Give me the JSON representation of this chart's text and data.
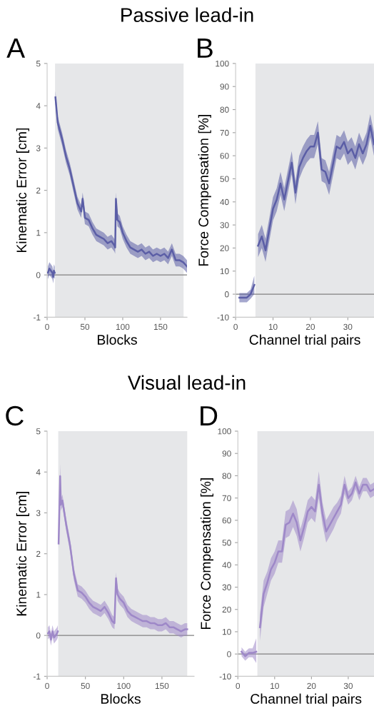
{
  "chart_data": [
    {
      "type": "line",
      "title": "A",
      "annotations": [
        "Passive lead-in"
      ],
      "xlabel": "Blocks",
      "ylabel": "Kinematic Error [cm]",
      "xlim": [
        0,
        185
      ],
      "xticks": [
        0,
        50,
        100,
        150
      ],
      "ylim": [
        -1,
        5
      ],
      "yticks": [
        -1,
        0,
        1,
        2,
        3,
        4,
        5
      ],
      "grid": false,
      "bands": [
        {
          "axis": "x",
          "from": 10.5,
          "to": 180.5,
          "color": "#e6e7e9"
        }
      ],
      "ref_lines": [
        {
          "axis": "y",
          "value": 0,
          "color": "#808080"
        }
      ],
      "series": [
        {
          "color": "#5b5ea6",
          "x": [
            1,
            3,
            5,
            7,
            8,
            9,
            10,
            10.7,
            11,
            12,
            14,
            17,
            20,
            25,
            30,
            35,
            40,
            45,
            47,
            50,
            55,
            60,
            65,
            70,
            75,
            80,
            85,
            89,
            90,
            91,
            93,
            96,
            100,
            105,
            110,
            115,
            120,
            125,
            130,
            135,
            140,
            145,
            150,
            155,
            160,
            165,
            170,
            175,
            180,
            185
          ],
          "values": [
            0.05,
            0.15,
            0.1,
            0.05,
            -0.05,
            0.1,
            0.05,
            null,
            4.2,
            4.0,
            3.6,
            3.4,
            3.2,
            2.8,
            2.5,
            2.1,
            1.7,
            1.5,
            1.8,
            1.35,
            1.3,
            1.1,
            0.95,
            0.9,
            0.85,
            0.75,
            0.8,
            0.7,
            0.65,
            1.8,
            1.3,
            1.25,
            1.0,
            0.8,
            0.65,
            0.6,
            0.55,
            0.6,
            0.5,
            0.55,
            0.45,
            0.5,
            0.45,
            0.5,
            0.4,
            0.6,
            0.35,
            0.35,
            0.3,
            0.2
          ],
          "lower": [
            -0.1,
            0.0,
            -0.05,
            -0.1,
            -0.2,
            -0.05,
            -0.1,
            null,
            4.05,
            3.85,
            3.45,
            3.25,
            3.05,
            2.65,
            2.35,
            1.95,
            1.55,
            1.35,
            1.65,
            1.2,
            1.15,
            0.95,
            0.8,
            0.75,
            0.7,
            0.6,
            0.65,
            0.55,
            0.5,
            1.65,
            1.15,
            1.1,
            0.85,
            0.65,
            0.5,
            0.45,
            0.4,
            0.45,
            0.35,
            0.4,
            0.3,
            0.35,
            0.3,
            0.35,
            0.25,
            0.45,
            0.2,
            0.2,
            0.15,
            0.05
          ],
          "upper": [
            0.2,
            0.3,
            0.25,
            0.2,
            0.1,
            0.25,
            0.2,
            null,
            4.35,
            4.15,
            3.75,
            3.55,
            3.35,
            2.95,
            2.65,
            2.25,
            1.85,
            1.65,
            1.95,
            1.5,
            1.45,
            1.25,
            1.1,
            1.05,
            1.0,
            0.9,
            0.95,
            0.85,
            0.8,
            1.95,
            1.45,
            1.4,
            1.15,
            0.95,
            0.8,
            0.75,
            0.7,
            0.75,
            0.65,
            0.7,
            0.6,
            0.65,
            0.6,
            0.65,
            0.55,
            0.75,
            0.5,
            0.5,
            0.45,
            0.35
          ]
        }
      ]
    },
    {
      "type": "line",
      "title": "B",
      "xlabel": "Channel trial pairs",
      "ylabel": "Force Compensation [%]",
      "xlim": [
        0,
        37
      ],
      "xticks": [
        0,
        10,
        20,
        30
      ],
      "ylim": [
        -10,
        100
      ],
      "yticks": [
        -10,
        0,
        10,
        20,
        30,
        40,
        50,
        60,
        70,
        80,
        90,
        100
      ],
      "grid": false,
      "bands": [
        {
          "axis": "x",
          "from": 5.3,
          "to": 37,
          "color": "#e6e7e9"
        }
      ],
      "ref_lines": [
        {
          "axis": "y",
          "value": 0,
          "color": "#808080"
        }
      ],
      "series": [
        {
          "color": "#5b5ea6",
          "x": [
            1,
            2,
            3,
            4,
            5,
            5.5,
            6,
            7,
            8,
            9,
            10,
            11,
            12,
            13,
            14,
            15,
            16,
            17,
            18,
            19,
            20,
            21,
            22,
            23,
            24,
            25,
            26,
            27,
            28,
            29,
            30,
            31,
            32,
            33,
            34,
            35,
            36,
            37
          ],
          "values": [
            -1.5,
            -1.5,
            -1.5,
            0,
            4,
            null,
            21,
            25,
            19,
            28,
            37,
            41,
            48,
            41,
            49,
            57,
            44,
            55,
            59,
            62,
            64,
            64,
            70,
            54,
            53,
            48,
            56,
            64,
            63,
            66,
            61,
            63,
            59,
            65,
            61,
            65,
            73,
            65
          ],
          "lower": [
            -3.5,
            -3.5,
            -3.5,
            -2,
            0,
            null,
            16,
            20,
            14,
            23,
            32,
            36,
            43,
            36,
            44,
            52,
            39,
            50,
            54,
            57,
            59,
            59,
            65,
            49,
            48,
            43,
            51,
            59,
            58,
            61,
            56,
            58,
            54,
            60,
            56,
            60,
            68,
            60
          ],
          "upper": [
            0.5,
            0.5,
            0.5,
            2,
            8,
            null,
            26,
            30,
            24,
            33,
            42,
            46,
            53,
            46,
            54,
            62,
            49,
            60,
            64,
            67,
            69,
            69,
            75,
            59,
            58,
            53,
            61,
            69,
            68,
            71,
            66,
            68,
            64,
            70,
            66,
            70,
            78,
            70
          ]
        }
      ]
    },
    {
      "type": "line",
      "title": "C",
      "annotations": [
        "Visual lead-in"
      ],
      "xlabel": "Blocks",
      "ylabel": "Kinematic Error [cm]",
      "xlim": [
        0,
        192
      ],
      "xticks": [
        0,
        50,
        100,
        150
      ],
      "ylim": [
        -1,
        5
      ],
      "yticks": [
        -1,
        0,
        1,
        2,
        3,
        4,
        5
      ],
      "grid": false,
      "bands": [
        {
          "axis": "x",
          "from": 14.5,
          "to": 183,
          "color": "#e6e7e9"
        }
      ],
      "ref_lines": [
        {
          "axis": "y",
          "value": 0,
          "color": "#808080"
        }
      ],
      "series": [
        {
          "color": "#9e88c8",
          "x": [
            1,
            3,
            5,
            7,
            9,
            11,
            13,
            14,
            14.7,
            15,
            17,
            18,
            20,
            25,
            30,
            35,
            40,
            45,
            50,
            55,
            60,
            65,
            70,
            75,
            80,
            85,
            88,
            90,
            92,
            95,
            100,
            105,
            110,
            115,
            120,
            125,
            130,
            135,
            140,
            145,
            150,
            155,
            160,
            165,
            170,
            175,
            180,
            183
          ],
          "values": [
            0.05,
            0.1,
            -0.1,
            0.1,
            -0.05,
            0.0,
            0.05,
            0.1,
            null,
            2.25,
            3.9,
            3.2,
            3.3,
            2.7,
            2.2,
            1.5,
            1.1,
            1.05,
            0.95,
            0.8,
            0.7,
            0.65,
            0.6,
            0.7,
            0.55,
            0.35,
            0.3,
            1.4,
            1.0,
            0.9,
            0.8,
            0.6,
            0.5,
            0.45,
            0.4,
            0.35,
            0.35,
            0.3,
            0.3,
            0.25,
            0.25,
            0.3,
            0.2,
            0.2,
            0.15,
            0.1,
            0.15,
            0.15
          ],
          "lower": [
            -0.1,
            -0.05,
            -0.25,
            -0.05,
            -0.2,
            -0.15,
            -0.1,
            -0.05,
            null,
            2.1,
            3.6,
            3.05,
            3.15,
            2.55,
            2.05,
            1.35,
            0.95,
            0.9,
            0.8,
            0.65,
            0.55,
            0.5,
            0.45,
            0.55,
            0.4,
            0.2,
            0.15,
            1.25,
            0.85,
            0.75,
            0.65,
            0.45,
            0.35,
            0.3,
            0.25,
            0.2,
            0.2,
            0.15,
            0.15,
            0.1,
            0.1,
            0.15,
            0.05,
            0.05,
            0.0,
            -0.05,
            0.0,
            0.0
          ],
          "upper": [
            0.2,
            0.25,
            0.05,
            0.25,
            0.1,
            0.15,
            0.2,
            0.25,
            null,
            2.4,
            4.2,
            3.35,
            3.45,
            2.85,
            2.35,
            1.65,
            1.25,
            1.2,
            1.1,
            0.95,
            0.85,
            0.8,
            0.75,
            0.85,
            0.7,
            0.5,
            0.45,
            1.55,
            1.15,
            1.05,
            0.95,
            0.75,
            0.65,
            0.6,
            0.55,
            0.5,
            0.5,
            0.45,
            0.45,
            0.4,
            0.4,
            0.45,
            0.35,
            0.35,
            0.3,
            0.25,
            0.3,
            0.3
          ]
        }
      ]
    },
    {
      "type": "line",
      "title": "D",
      "xlabel": "Channel trial pairs",
      "ylabel": "Force Compensation [%]",
      "xlim": [
        0,
        37
      ],
      "xticks": [
        0,
        10,
        20,
        30
      ],
      "ylim": [
        -10,
        100
      ],
      "yticks": [
        -10,
        0,
        10,
        20,
        30,
        40,
        50,
        60,
        70,
        80,
        90,
        100
      ],
      "grid": false,
      "bands": [
        {
          "axis": "x",
          "from": 5.3,
          "to": 37,
          "color": "#e6e7e9"
        }
      ],
      "ref_lines": [
        {
          "axis": "y",
          "value": 0,
          "color": "#808080"
        }
      ],
      "series": [
        {
          "color": "#9e88c8",
          "x": [
            1,
            2,
            3,
            4,
            5,
            5.5,
            6,
            7,
            8,
            9,
            10,
            11,
            12,
            13,
            14,
            15,
            16,
            17,
            18,
            19,
            20,
            21,
            22,
            23,
            24,
            25,
            26,
            27,
            28,
            29,
            30,
            31,
            32,
            33,
            34,
            35,
            36,
            37
          ],
          "values": [
            1,
            -1,
            0.5,
            0.5,
            1,
            null,
            12,
            27,
            32,
            38,
            41,
            46,
            46,
            58,
            59,
            63,
            59,
            51,
            57,
            64,
            66,
            64,
            76,
            63,
            55,
            58,
            61,
            64,
            67,
            76,
            70,
            72,
            77,
            72,
            76,
            76,
            73,
            74
          ],
          "lower": [
            -1,
            -3,
            -1.5,
            -1.5,
            -4,
            null,
            6,
            21,
            27,
            33,
            36,
            41,
            41,
            52,
            53,
            57,
            53,
            46,
            52,
            59,
            61,
            59,
            70,
            58,
            50,
            53,
            56,
            60,
            63,
            72,
            67,
            69,
            74,
            69,
            73,
            73,
            70,
            71
          ],
          "upper": [
            3,
            1,
            2.5,
            2.5,
            7,
            null,
            18,
            33,
            37,
            43,
            46,
            51,
            51,
            64,
            65,
            69,
            65,
            56,
            62,
            69,
            71,
            69,
            82,
            68,
            60,
            63,
            66,
            68,
            71,
            80,
            73,
            75,
            80,
            75,
            79,
            79,
            76,
            77
          ]
        }
      ]
    }
  ]
}
